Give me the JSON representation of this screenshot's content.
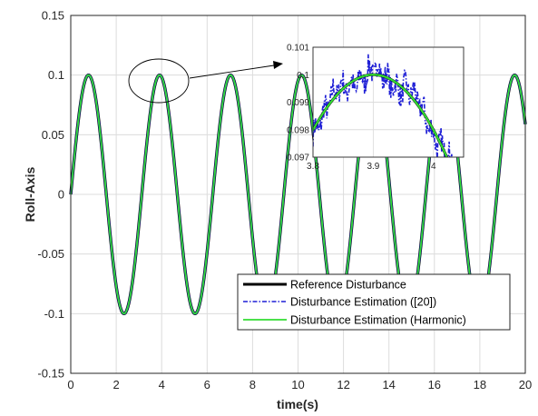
{
  "chart_data": {
    "type": "line",
    "xlabel": "time(s)",
    "ylabel": "Roll-Axis",
    "xlim": [
      0,
      20
    ],
    "ylim": [
      -0.15,
      0.15
    ],
    "x_ticks": [
      "0",
      "2",
      "4",
      "6",
      "8",
      "10",
      "12",
      "14",
      "16",
      "18",
      "20"
    ],
    "y_ticks": [
      "-0.15",
      "-0.1",
      "-0.05",
      "0",
      "0.05",
      "0.1",
      "0.15"
    ],
    "grid": true,
    "legend_position": "bottom-right",
    "signal": {
      "amplitude": 0.1,
      "frequency_hz": 0.32
    },
    "series": [
      {
        "name": "Reference Disturbance",
        "color": "#000000",
        "style": "solid"
      },
      {
        "name": "Disturbance Estimation ([20])",
        "color": "#1f1fd6",
        "style": "dash-dot"
      },
      {
        "name": "Disturbance Estimation (Harmonic)",
        "color": "#33dd33",
        "style": "solid"
      }
    ],
    "inset": {
      "xlim": [
        3.8,
        4.05
      ],
      "ylim": [
        0.097,
        0.101
      ],
      "x_ticks": [
        "3.8",
        "3.9",
        "4"
      ],
      "y_ticks": [
        "0.097",
        "0.098",
        "0.099",
        "0.1",
        "0.101"
      ],
      "zoom_center": [
        3.9,
        0.1
      ]
    }
  }
}
